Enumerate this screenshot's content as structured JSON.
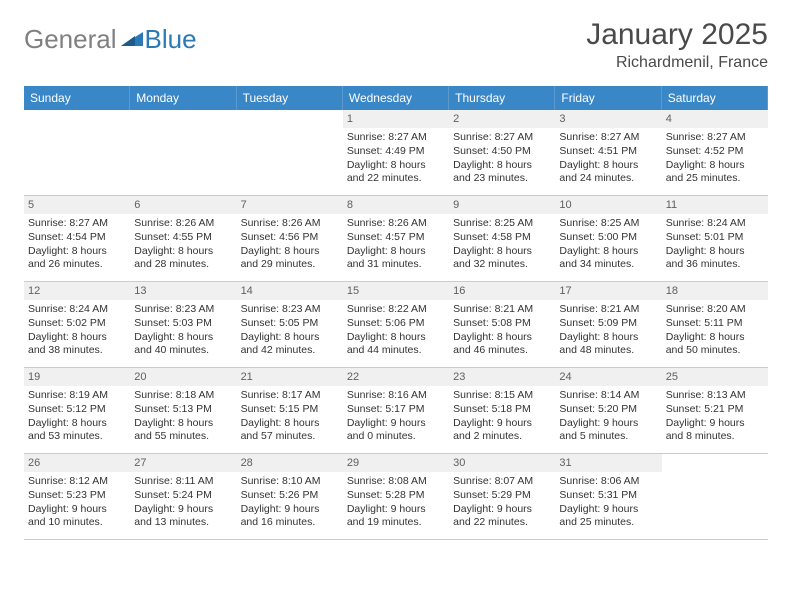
{
  "brand": {
    "text_part1": "General",
    "text_part2": "Blue",
    "color_gray": "#808080",
    "color_blue": "#2a7ab8"
  },
  "title": "January 2025",
  "location": "Richardmenil, France",
  "header_bg": "#3a87c8",
  "header_text_color": "#ffffff",
  "daynum_bg": "#f0f0f0",
  "border_color": "#cccccc",
  "weekdays": [
    "Sunday",
    "Monday",
    "Tuesday",
    "Wednesday",
    "Thursday",
    "Friday",
    "Saturday"
  ],
  "leading_blanks": 3,
  "days": [
    {
      "n": "1",
      "sunrise": "8:27 AM",
      "sunset": "4:49 PM",
      "daylight": "8 hours and 22 minutes."
    },
    {
      "n": "2",
      "sunrise": "8:27 AM",
      "sunset": "4:50 PM",
      "daylight": "8 hours and 23 minutes."
    },
    {
      "n": "3",
      "sunrise": "8:27 AM",
      "sunset": "4:51 PM",
      "daylight": "8 hours and 24 minutes."
    },
    {
      "n": "4",
      "sunrise": "8:27 AM",
      "sunset": "4:52 PM",
      "daylight": "8 hours and 25 minutes."
    },
    {
      "n": "5",
      "sunrise": "8:27 AM",
      "sunset": "4:54 PM",
      "daylight": "8 hours and 26 minutes."
    },
    {
      "n": "6",
      "sunrise": "8:26 AM",
      "sunset": "4:55 PM",
      "daylight": "8 hours and 28 minutes."
    },
    {
      "n": "7",
      "sunrise": "8:26 AM",
      "sunset": "4:56 PM",
      "daylight": "8 hours and 29 minutes."
    },
    {
      "n": "8",
      "sunrise": "8:26 AM",
      "sunset": "4:57 PM",
      "daylight": "8 hours and 31 minutes."
    },
    {
      "n": "9",
      "sunrise": "8:25 AM",
      "sunset": "4:58 PM",
      "daylight": "8 hours and 32 minutes."
    },
    {
      "n": "10",
      "sunrise": "8:25 AM",
      "sunset": "5:00 PM",
      "daylight": "8 hours and 34 minutes."
    },
    {
      "n": "11",
      "sunrise": "8:24 AM",
      "sunset": "5:01 PM",
      "daylight": "8 hours and 36 minutes."
    },
    {
      "n": "12",
      "sunrise": "8:24 AM",
      "sunset": "5:02 PM",
      "daylight": "8 hours and 38 minutes."
    },
    {
      "n": "13",
      "sunrise": "8:23 AM",
      "sunset": "5:03 PM",
      "daylight": "8 hours and 40 minutes."
    },
    {
      "n": "14",
      "sunrise": "8:23 AM",
      "sunset": "5:05 PM",
      "daylight": "8 hours and 42 minutes."
    },
    {
      "n": "15",
      "sunrise": "8:22 AM",
      "sunset": "5:06 PM",
      "daylight": "8 hours and 44 minutes."
    },
    {
      "n": "16",
      "sunrise": "8:21 AM",
      "sunset": "5:08 PM",
      "daylight": "8 hours and 46 minutes."
    },
    {
      "n": "17",
      "sunrise": "8:21 AM",
      "sunset": "5:09 PM",
      "daylight": "8 hours and 48 minutes."
    },
    {
      "n": "18",
      "sunrise": "8:20 AM",
      "sunset": "5:11 PM",
      "daylight": "8 hours and 50 minutes."
    },
    {
      "n": "19",
      "sunrise": "8:19 AM",
      "sunset": "5:12 PM",
      "daylight": "8 hours and 53 minutes."
    },
    {
      "n": "20",
      "sunrise": "8:18 AM",
      "sunset": "5:13 PM",
      "daylight": "8 hours and 55 minutes."
    },
    {
      "n": "21",
      "sunrise": "8:17 AM",
      "sunset": "5:15 PM",
      "daylight": "8 hours and 57 minutes."
    },
    {
      "n": "22",
      "sunrise": "8:16 AM",
      "sunset": "5:17 PM",
      "daylight": "9 hours and 0 minutes."
    },
    {
      "n": "23",
      "sunrise": "8:15 AM",
      "sunset": "5:18 PM",
      "daylight": "9 hours and 2 minutes."
    },
    {
      "n": "24",
      "sunrise": "8:14 AM",
      "sunset": "5:20 PM",
      "daylight": "9 hours and 5 minutes."
    },
    {
      "n": "25",
      "sunrise": "8:13 AM",
      "sunset": "5:21 PM",
      "daylight": "9 hours and 8 minutes."
    },
    {
      "n": "26",
      "sunrise": "8:12 AM",
      "sunset": "5:23 PM",
      "daylight": "9 hours and 10 minutes."
    },
    {
      "n": "27",
      "sunrise": "8:11 AM",
      "sunset": "5:24 PM",
      "daylight": "9 hours and 13 minutes."
    },
    {
      "n": "28",
      "sunrise": "8:10 AM",
      "sunset": "5:26 PM",
      "daylight": "9 hours and 16 minutes."
    },
    {
      "n": "29",
      "sunrise": "8:08 AM",
      "sunset": "5:28 PM",
      "daylight": "9 hours and 19 minutes."
    },
    {
      "n": "30",
      "sunrise": "8:07 AM",
      "sunset": "5:29 PM",
      "daylight": "9 hours and 22 minutes."
    },
    {
      "n": "31",
      "sunrise": "8:06 AM",
      "sunset": "5:31 PM",
      "daylight": "9 hours and 25 minutes."
    }
  ]
}
